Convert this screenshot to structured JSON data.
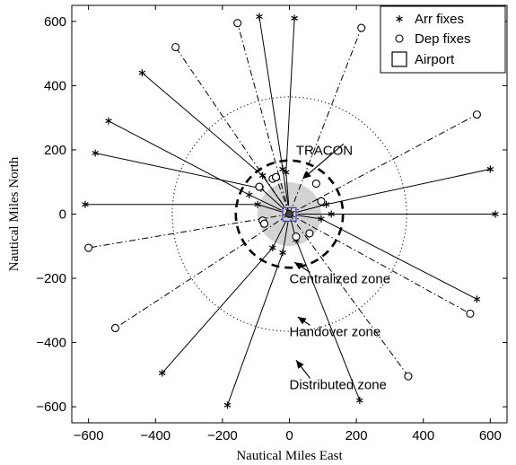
{
  "chart_data": {
    "type": "scatter",
    "xlabel": "Nautical Miles East",
    "ylabel": "Nautical Miles North",
    "xlim": [
      -650,
      650
    ],
    "ylim": [
      -650,
      650
    ],
    "xticks": [
      -600,
      -400,
      -200,
      0,
      200,
      400,
      600
    ],
    "yticks": [
      -600,
      -400,
      -200,
      0,
      200,
      400,
      600
    ],
    "legend": {
      "placement": "top-right",
      "entries": [
        "Arr fixes",
        "Dep fixes",
        "Airport"
      ]
    },
    "annotations": [
      {
        "text": "TRACON",
        "x": 100,
        "y": 185,
        "arrow_to": [
          40,
          110
        ]
      },
      {
        "text": "Centralized zone",
        "x": 0,
        "y": -215,
        "arrow_to": [
          15,
          -150
        ]
      },
      {
        "text": "Handover zone",
        "x": 0,
        "y": -380,
        "arrow_to": [
          25,
          -320
        ]
      },
      {
        "text": "Distributed zone",
        "x": 0,
        "y": -545,
        "arrow_to": [
          20,
          -455
        ]
      }
    ],
    "zones": [
      {
        "name": "centralized",
        "radius": 95,
        "style": "shaded"
      },
      {
        "name": "tracon",
        "radius": 160,
        "style": "dashed"
      },
      {
        "name": "handover",
        "radius": 350,
        "style": "dotted"
      }
    ],
    "airport": {
      "x": 0,
      "y": 0,
      "half_size": 20
    },
    "arrival_routes": [
      {
        "fix": [
          -610,
          30
        ],
        "entry": [
          -95,
          30
        ]
      },
      {
        "fix": [
          -580,
          190
        ],
        "entry": [
          -85,
          80
        ]
      },
      {
        "fix": [
          -540,
          290
        ],
        "entry": [
          -120,
          60
        ]
      },
      {
        "fix": [
          -440,
          440
        ],
        "entry": [
          -80,
          120
        ]
      },
      {
        "fix": [
          -90,
          615
        ],
        "entry": [
          -20,
          140
        ]
      },
      {
        "fix": [
          15,
          610
        ],
        "entry": [
          -10,
          130
        ]
      },
      {
        "fix": [
          600,
          140
        ],
        "entry": [
          110,
          30
        ]
      },
      {
        "fix": [
          615,
          0
        ],
        "entry": [
          125,
          0
        ]
      },
      {
        "fix": [
          560,
          -265
        ],
        "entry": [
          95,
          -15
        ]
      },
      {
        "fix": [
          210,
          -580
        ],
        "entry": [
          20,
          -80
        ]
      },
      {
        "fix": [
          -185,
          -595
        ],
        "entry": [
          -20,
          -120
        ]
      },
      {
        "fix": [
          -380,
          -495
        ],
        "entry": [
          -50,
          -105
        ]
      }
    ],
    "departure_routes": [
      {
        "fix": [
          -155,
          595
        ],
        "exit": [
          -50,
          110
        ]
      },
      {
        "fix": [
          -340,
          520
        ],
        "exit": [
          -90,
          85
        ]
      },
      {
        "fix": [
          215,
          580
        ],
        "exit": [
          80,
          95
        ]
      },
      {
        "fix": [
          560,
          310
        ],
        "exit": [
          95,
          40
        ]
      },
      {
        "fix": [
          -600,
          -105
        ],
        "exit": [
          -80,
          -20
        ]
      },
      {
        "fix": [
          -520,
          -355
        ],
        "exit": [
          -75,
          -30
        ]
      },
      {
        "fix": [
          540,
          -310
        ],
        "exit": [
          60,
          -60
        ]
      },
      {
        "fix": [
          355,
          -505
        ],
        "exit": [
          20,
          -70
        ]
      },
      {
        "fix": [
          -40,
          115
        ],
        "exit": [
          -40,
          115
        ]
      }
    ]
  }
}
